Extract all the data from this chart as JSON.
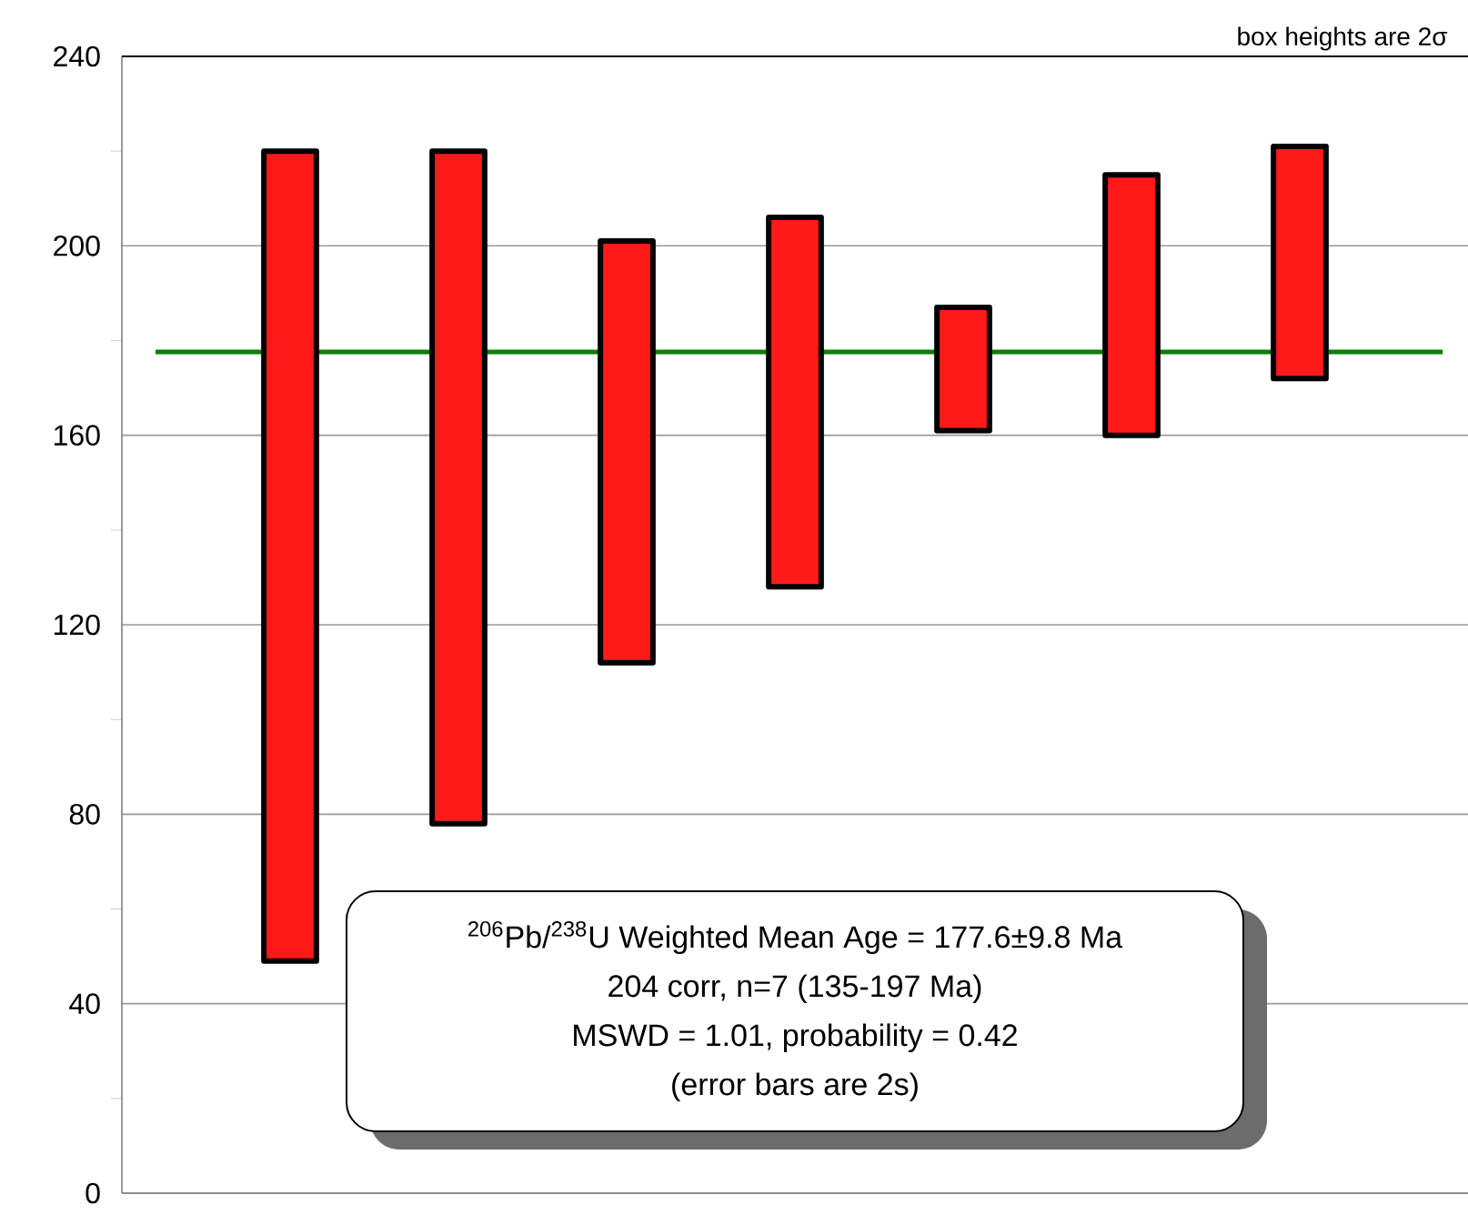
{
  "chart_data": {
    "type": "bar",
    "categories": [
      null,
      null,
      null,
      null,
      null,
      null,
      null
    ],
    "base": [
      49,
      78,
      112,
      128,
      161,
      160,
      172
    ],
    "values": [
      171,
      142,
      89,
      78,
      26,
      55,
      49
    ],
    "color": "#ff1a1a",
    "ylim": [
      0,
      240
    ],
    "yticks": [
      0,
      {
        "value": 20,
        "label": null
      },
      40,
      {
        "value": 60,
        "label": null
      },
      80,
      {
        "value": 100,
        "label": null
      },
      120,
      {
        "value": 140,
        "label": null
      },
      160,
      {
        "value": 180,
        "label": null
      },
      200,
      {
        "value": 220,
        "label": null
      },
      240
    ],
    "grid": "y",
    "ref_lines": [
      {
        "axis": "y",
        "value": 177.6,
        "color": "#008000"
      }
    ],
    "annotations": [
      "box heights are 2σ",
      "$^{206}$Pb/$^{238}$U Weighted Mean Age  = 177.6±9.8 Ma",
      "204 corr, n=7 (135-197 Ma)",
      "MSWD = 1.01, probability = 0.42",
      "(error bars are 2s)"
    ]
  }
}
